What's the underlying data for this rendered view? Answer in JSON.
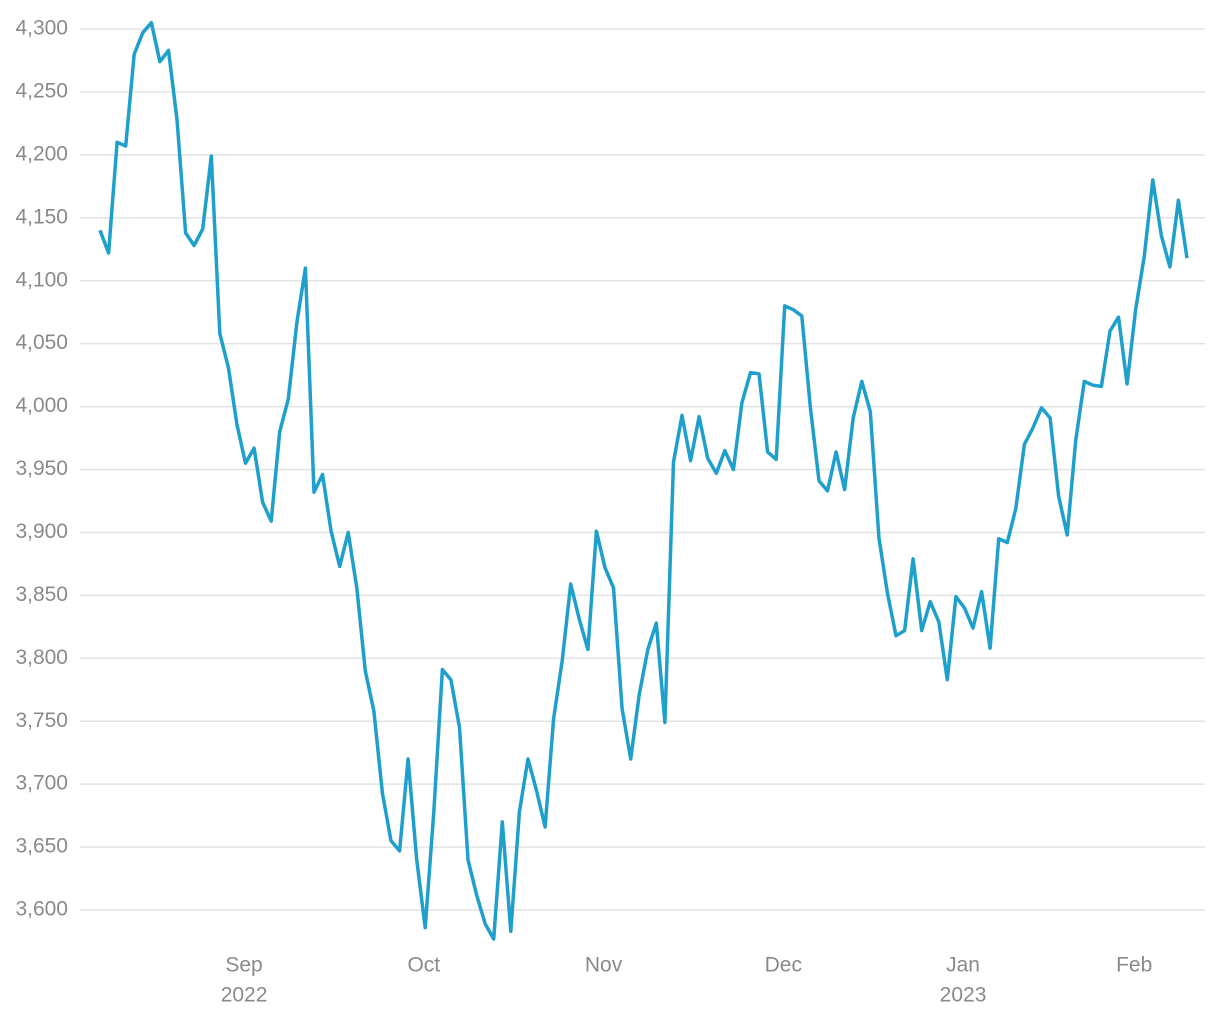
{
  "chart_data": {
    "type": "line",
    "categories": [
      null,
      null,
      null,
      null,
      null,
      null,
      null,
      null,
      null,
      null,
      null,
      null,
      null,
      null,
      null,
      null,
      null,
      null,
      "Sep",
      null,
      null,
      null,
      null,
      null,
      null,
      null,
      null,
      null,
      null,
      null,
      null,
      null,
      null,
      null,
      null,
      null,
      null,
      null,
      null,
      "Oct",
      null,
      null,
      null,
      null,
      null,
      null,
      null,
      null,
      null,
      null,
      null,
      null,
      null,
      null,
      null,
      null,
      null,
      null,
      null,
      null,
      "Nov",
      null,
      null,
      null,
      null,
      null,
      null,
      null,
      null,
      null,
      null,
      null,
      null,
      null,
      null,
      null,
      null,
      null,
      null,
      null,
      null,
      "Dec",
      null,
      null,
      null,
      null,
      null,
      null,
      null,
      null,
      null,
      null,
      null,
      null,
      null,
      null,
      null,
      null,
      null,
      null,
      null,
      null,
      "Jan",
      null,
      null,
      null,
      null,
      null,
      null,
      null,
      null,
      null,
      null,
      null,
      null,
      null,
      null,
      null,
      null,
      null,
      null,
      null,
      "Feb",
      null,
      null,
      null,
      null,
      null
    ],
    "x_year_labels": [
      null,
      null,
      null,
      null,
      null,
      null,
      null,
      null,
      null,
      null,
      null,
      null,
      null,
      null,
      null,
      null,
      null,
      null,
      "2022",
      null,
      null,
      null,
      null,
      null,
      null,
      null,
      null,
      null,
      null,
      null,
      null,
      null,
      null,
      null,
      null,
      null,
      null,
      null,
      null,
      null,
      null,
      null,
      null,
      null,
      null,
      null,
      null,
      null,
      null,
      null,
      null,
      null,
      null,
      null,
      null,
      null,
      null,
      null,
      null,
      null,
      null,
      null,
      null,
      null,
      null,
      null,
      null,
      null,
      null,
      null,
      null,
      null,
      null,
      null,
      null,
      null,
      null,
      null,
      null,
      null,
      null,
      null,
      null,
      null,
      null,
      null,
      null,
      null,
      null,
      null,
      null,
      null,
      null,
      null,
      null,
      null,
      null,
      null,
      null,
      null,
      null,
      null,
      "2023",
      null,
      null,
      null,
      null,
      null,
      null,
      null,
      null,
      null,
      null,
      null,
      null,
      null,
      null,
      null,
      null,
      null,
      null,
      null,
      null,
      null,
      null,
      null,
      null,
      null
    ],
    "series": [
      {
        "color": "#1f9fcc",
        "values": [
          4140,
          4122,
          4210,
          4207,
          4280,
          4297,
          4305,
          4274,
          4283,
          4228,
          4138,
          4128,
          4141,
          4199,
          4058,
          4031,
          3986,
          3955,
          3967,
          3924,
          3909,
          3980,
          4006,
          4067,
          4110,
          3932,
          3946,
          3901,
          3873,
          3900,
          3856,
          3790,
          3758,
          3693,
          3655,
          3647,
          3720,
          3640,
          3586,
          3678,
          3791,
          3783,
          3745,
          3640,
          3612,
          3589,
          3577,
          3670,
          3583,
          3678,
          3720,
          3695,
          3666,
          3752,
          3798,
          3859,
          3831,
          3807,
          3901,
          3872,
          3856,
          3760,
          3720,
          3771,
          3807,
          3828,
          3749,
          3956,
          3993,
          3957,
          3992,
          3959,
          3947,
          3965,
          3950,
          4003,
          4027,
          4026,
          3964,
          3958,
          4080,
          4077,
          4072,
          3999,
          3941,
          3933,
          3964,
          3934,
          3991,
          4020,
          3996,
          3896,
          3852,
          3818,
          3822,
          3879,
          3822,
          3845,
          3829,
          3783,
          3849,
          3840,
          3824,
          3853,
          3808,
          3895,
          3892,
          3919,
          3970,
          3983,
          3999,
          3991,
          3929,
          3898,
          3973,
          4020,
          4017,
          4016,
          4060,
          4071,
          4018,
          4077,
          4119,
          4180,
          4136,
          4111,
          4164,
          4118
        ]
      }
    ],
    "ylim": [
      3570,
      4320
    ],
    "yticks": [
      {
        "value": 3600,
        "label": "3,600"
      },
      {
        "value": 3650,
        "label": "3,650"
      },
      {
        "value": 3700,
        "label": "3,700"
      },
      {
        "value": 3750,
        "label": "3,750"
      },
      {
        "value": 3800,
        "label": "3,800"
      },
      {
        "value": 3850,
        "label": "3,850"
      },
      {
        "value": 3900,
        "label": "3,900"
      },
      {
        "value": 3950,
        "label": "3,950"
      },
      {
        "value": 4000,
        "label": "4,000"
      },
      {
        "value": 4050,
        "label": "4,050"
      },
      {
        "value": 4100,
        "label": "4,100"
      },
      {
        "value": 4150,
        "label": "4,150"
      },
      {
        "value": 4200,
        "label": "4,200"
      },
      {
        "value": 4250,
        "label": "4,250"
      },
      {
        "value": 4300,
        "label": "4,300"
      }
    ],
    "grid": true
  }
}
